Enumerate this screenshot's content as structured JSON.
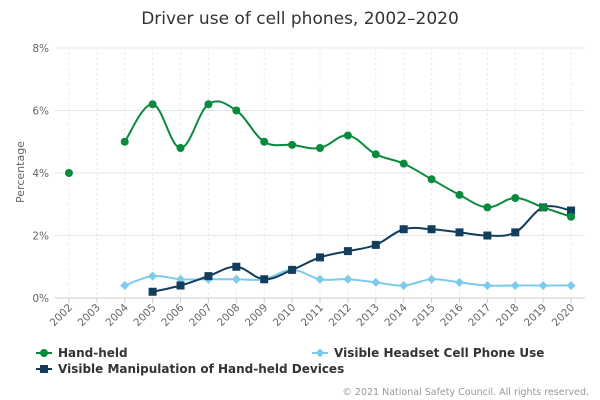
{
  "chart_data": {
    "type": "line",
    "title": "Driver use of cell phones, 2002–2020",
    "ylabel": "Percentage",
    "ylim": [
      0,
      8
    ],
    "yticks": [
      "0%",
      "2%",
      "4%",
      "6%",
      "8%"
    ],
    "x": [
      2002,
      2003,
      2004,
      2005,
      2006,
      2007,
      2008,
      2009,
      2010,
      2011,
      2012,
      2013,
      2014,
      2015,
      2016,
      2017,
      2018,
      2019,
      2020
    ],
    "grid": true,
    "legend_position": "bottom",
    "series": [
      {
        "name": "Hand-held",
        "color": "#0a8a3c",
        "marker": "circle",
        "values": [
          4.0,
          null,
          5.0,
          6.2,
          4.8,
          6.2,
          6.0,
          5.0,
          4.9,
          4.8,
          5.2,
          4.6,
          4.3,
          3.8,
          3.3,
          2.9,
          3.2,
          2.9,
          2.6
        ]
      },
      {
        "name": "Visible Headset Cell Phone Use",
        "color": "#7ccbea",
        "marker": "diamond",
        "values": [
          null,
          null,
          0.4,
          0.7,
          0.6,
          0.6,
          0.6,
          0.6,
          0.9,
          0.6,
          0.6,
          0.5,
          0.4,
          0.6,
          0.5,
          0.4,
          0.4,
          0.4,
          0.4
        ]
      },
      {
        "name": "Visible Manipulation of Hand-held Devices",
        "color": "#123d5c",
        "marker": "square",
        "values": [
          null,
          null,
          null,
          0.2,
          0.4,
          0.7,
          1.0,
          0.6,
          0.9,
          1.3,
          1.5,
          1.7,
          2.2,
          2.2,
          2.1,
          2.0,
          2.1,
          2.9,
          2.8
        ]
      }
    ]
  },
  "credit": "© 2021 National Safety Council. All rights reserved."
}
